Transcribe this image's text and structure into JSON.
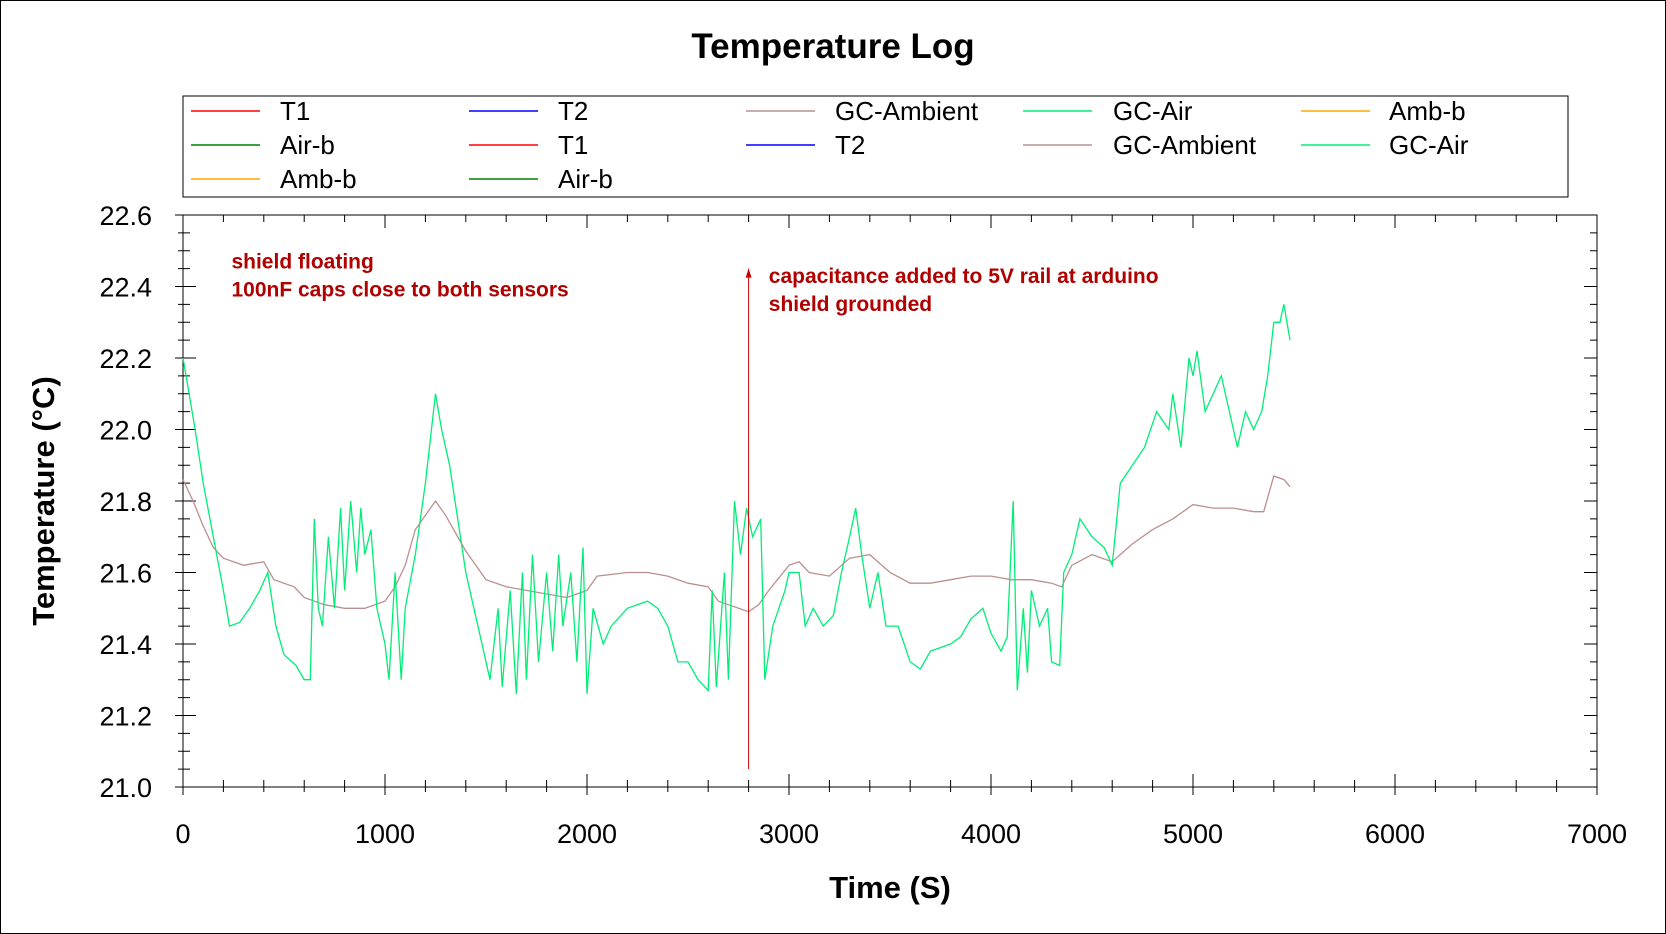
{
  "chart_data": {
    "type": "line",
    "title": "Temperature Log",
    "xlabel": "Time (S)",
    "ylabel": "Temperature (°C)",
    "xlim": [
      0,
      7000
    ],
    "ylim": [
      21.0,
      22.6
    ],
    "xticks": [
      0,
      1000,
      2000,
      3000,
      4000,
      5000,
      6000,
      7000
    ],
    "yticks": [
      "21.0",
      "21.2",
      "21.4",
      "21.6",
      "21.8",
      "22.0",
      "22.2",
      "22.4",
      "22.6"
    ],
    "legend": [
      {
        "name": "T1",
        "color": "#ff0000"
      },
      {
        "name": "T2",
        "color": "#0000ff"
      },
      {
        "name": "GC-Ambient",
        "color": "#bc8f8f"
      },
      {
        "name": "GC-Air",
        "color": "#00ee76"
      },
      {
        "name": "Amb-b",
        "color": "#ffa500"
      },
      {
        "name": "Air-b",
        "color": "#008000"
      },
      {
        "name": "T1",
        "color": "#ff0000"
      },
      {
        "name": "T2",
        "color": "#0000ff"
      },
      {
        "name": "GC-Ambient",
        "color": "#bc8f8f"
      },
      {
        "name": "GC-Air",
        "color": "#00ee76"
      },
      {
        "name": "Amb-b",
        "color": "#ffa500"
      },
      {
        "name": "Air-b",
        "color": "#008000"
      }
    ],
    "legend_placement": "top",
    "series": [
      {
        "name": "GC-Ambient",
        "color": "#bc8f8f",
        "points": [
          [
            0,
            21.86
          ],
          [
            50,
            21.8
          ],
          [
            100,
            21.73
          ],
          [
            150,
            21.67
          ],
          [
            200,
            21.64
          ],
          [
            300,
            21.62
          ],
          [
            400,
            21.63
          ],
          [
            450,
            21.58
          ],
          [
            550,
            21.56
          ],
          [
            600,
            21.53
          ],
          [
            700,
            21.51
          ],
          [
            800,
            21.5
          ],
          [
            900,
            21.5
          ],
          [
            1000,
            21.52
          ],
          [
            1050,
            21.56
          ],
          [
            1100,
            21.62
          ],
          [
            1150,
            21.72
          ],
          [
            1250,
            21.8
          ],
          [
            1300,
            21.76
          ],
          [
            1400,
            21.66
          ],
          [
            1500,
            21.58
          ],
          [
            1600,
            21.56
          ],
          [
            1700,
            21.55
          ],
          [
            1800,
            21.54
          ],
          [
            1900,
            21.53
          ],
          [
            2000,
            21.55
          ],
          [
            2050,
            21.59
          ],
          [
            2200,
            21.6
          ],
          [
            2300,
            21.6
          ],
          [
            2400,
            21.59
          ],
          [
            2500,
            21.57
          ],
          [
            2600,
            21.56
          ],
          [
            2650,
            21.52
          ],
          [
            2700,
            21.51
          ],
          [
            2800,
            21.49
          ],
          [
            2850,
            21.51
          ],
          [
            2900,
            21.55
          ],
          [
            3000,
            21.62
          ],
          [
            3050,
            21.63
          ],
          [
            3100,
            21.6
          ],
          [
            3200,
            21.59
          ],
          [
            3300,
            21.64
          ],
          [
            3400,
            21.65
          ],
          [
            3500,
            21.6
          ],
          [
            3600,
            21.57
          ],
          [
            3700,
            21.57
          ],
          [
            3800,
            21.58
          ],
          [
            3900,
            21.59
          ],
          [
            4000,
            21.59
          ],
          [
            4100,
            21.58
          ],
          [
            4200,
            21.58
          ],
          [
            4300,
            21.57
          ],
          [
            4350,
            21.56
          ],
          [
            4400,
            21.62
          ],
          [
            4500,
            21.65
          ],
          [
            4600,
            21.63
          ],
          [
            4700,
            21.68
          ],
          [
            4800,
            21.72
          ],
          [
            4900,
            21.75
          ],
          [
            5000,
            21.79
          ],
          [
            5100,
            21.78
          ],
          [
            5200,
            21.78
          ],
          [
            5300,
            21.77
          ],
          [
            5350,
            21.77
          ],
          [
            5400,
            21.87
          ],
          [
            5450,
            21.86
          ],
          [
            5480,
            21.84
          ]
        ]
      },
      {
        "name": "GC-Air",
        "color": "#00ee76",
        "points": [
          [
            0,
            22.2
          ],
          [
            30,
            22.1
          ],
          [
            60,
            22.0
          ],
          [
            100,
            21.85
          ],
          [
            150,
            21.7
          ],
          [
            200,
            21.55
          ],
          [
            230,
            21.45
          ],
          [
            280,
            21.46
          ],
          [
            330,
            21.5
          ],
          [
            380,
            21.55
          ],
          [
            420,
            21.6
          ],
          [
            460,
            21.45
          ],
          [
            500,
            21.37
          ],
          [
            560,
            21.34
          ],
          [
            600,
            21.3
          ],
          [
            630,
            21.3
          ],
          [
            650,
            21.75
          ],
          [
            670,
            21.5
          ],
          [
            690,
            21.45
          ],
          [
            720,
            21.7
          ],
          [
            750,
            21.5
          ],
          [
            780,
            21.78
          ],
          [
            800,
            21.55
          ],
          [
            830,
            21.8
          ],
          [
            860,
            21.6
          ],
          [
            880,
            21.78
          ],
          [
            900,
            21.65
          ],
          [
            930,
            21.72
          ],
          [
            960,
            21.5
          ],
          [
            1000,
            21.4
          ],
          [
            1020,
            21.3
          ],
          [
            1050,
            21.6
          ],
          [
            1080,
            21.3
          ],
          [
            1100,
            21.5
          ],
          [
            1150,
            21.65
          ],
          [
            1200,
            21.85
          ],
          [
            1250,
            22.1
          ],
          [
            1280,
            22.0
          ],
          [
            1320,
            21.9
          ],
          [
            1360,
            21.75
          ],
          [
            1400,
            21.6
          ],
          [
            1440,
            21.5
          ],
          [
            1480,
            21.4
          ],
          [
            1520,
            21.3
          ],
          [
            1560,
            21.5
          ],
          [
            1580,
            21.28
          ],
          [
            1620,
            21.55
          ],
          [
            1650,
            21.26
          ],
          [
            1680,
            21.6
          ],
          [
            1700,
            21.3
          ],
          [
            1730,
            21.65
          ],
          [
            1760,
            21.35
          ],
          [
            1800,
            21.6
          ],
          [
            1830,
            21.38
          ],
          [
            1860,
            21.65
          ],
          [
            1880,
            21.45
          ],
          [
            1920,
            21.6
          ],
          [
            1950,
            21.35
          ],
          [
            1980,
            21.67
          ],
          [
            2000,
            21.26
          ],
          [
            2030,
            21.5
          ],
          [
            2080,
            21.4
          ],
          [
            2120,
            21.45
          ],
          [
            2200,
            21.5
          ],
          [
            2300,
            21.52
          ],
          [
            2350,
            21.5
          ],
          [
            2400,
            21.45
          ],
          [
            2450,
            21.35
          ],
          [
            2500,
            21.35
          ],
          [
            2550,
            21.3
          ],
          [
            2600,
            21.27
          ],
          [
            2620,
            21.55
          ],
          [
            2640,
            21.28
          ],
          [
            2680,
            21.6
          ],
          [
            2700,
            21.3
          ],
          [
            2730,
            21.8
          ],
          [
            2760,
            21.65
          ],
          [
            2790,
            21.78
          ],
          [
            2820,
            21.7
          ],
          [
            2860,
            21.75
          ],
          [
            2880,
            21.3
          ],
          [
            2920,
            21.45
          ],
          [
            2980,
            21.55
          ],
          [
            3000,
            21.6
          ],
          [
            3050,
            21.6
          ],
          [
            3080,
            21.45
          ],
          [
            3120,
            21.5
          ],
          [
            3170,
            21.45
          ],
          [
            3220,
            21.48
          ],
          [
            3260,
            21.6
          ],
          [
            3300,
            21.7
          ],
          [
            3330,
            21.78
          ],
          [
            3360,
            21.65
          ],
          [
            3400,
            21.5
          ],
          [
            3440,
            21.6
          ],
          [
            3480,
            21.45
          ],
          [
            3540,
            21.45
          ],
          [
            3600,
            21.35
          ],
          [
            3650,
            21.33
          ],
          [
            3700,
            21.38
          ],
          [
            3800,
            21.4
          ],
          [
            3850,
            21.42
          ],
          [
            3900,
            21.47
          ],
          [
            3960,
            21.5
          ],
          [
            4000,
            21.43
          ],
          [
            4050,
            21.38
          ],
          [
            4080,
            21.42
          ],
          [
            4110,
            21.8
          ],
          [
            4130,
            21.27
          ],
          [
            4160,
            21.5
          ],
          [
            4180,
            21.32
          ],
          [
            4200,
            21.55
          ],
          [
            4240,
            21.45
          ],
          [
            4280,
            21.5
          ],
          [
            4300,
            21.35
          ],
          [
            4340,
            21.34
          ],
          [
            4360,
            21.6
          ],
          [
            4400,
            21.65
          ],
          [
            4440,
            21.75
          ],
          [
            4500,
            21.7
          ],
          [
            4560,
            21.67
          ],
          [
            4600,
            21.62
          ],
          [
            4640,
            21.85
          ],
          [
            4700,
            21.9
          ],
          [
            4760,
            21.95
          ],
          [
            4820,
            22.05
          ],
          [
            4880,
            22.0
          ],
          [
            4900,
            22.1
          ],
          [
            4940,
            21.95
          ],
          [
            4980,
            22.2
          ],
          [
            5000,
            22.15
          ],
          [
            5020,
            22.22
          ],
          [
            5060,
            22.05
          ],
          [
            5100,
            22.1
          ],
          [
            5140,
            22.15
          ],
          [
            5180,
            22.05
          ],
          [
            5220,
            21.95
          ],
          [
            5260,
            22.05
          ],
          [
            5300,
            22.0
          ],
          [
            5340,
            22.05
          ],
          [
            5370,
            22.15
          ],
          [
            5400,
            22.3
          ],
          [
            5430,
            22.3
          ],
          [
            5450,
            22.35
          ],
          [
            5480,
            22.25
          ]
        ]
      }
    ],
    "annotations": [
      {
        "lines": [
          "shield floating",
          "100nF caps close to both sensors"
        ],
        "x": 240,
        "y": 22.47
      },
      {
        "lines": [
          "capacitance added to 5V rail at arduino",
          "shield grounded"
        ],
        "x": 2900,
        "y": 22.43
      }
    ],
    "arrow": {
      "x": 2800,
      "y_from": 21.05,
      "y_to": 22.45,
      "color": "#cc0000"
    }
  }
}
